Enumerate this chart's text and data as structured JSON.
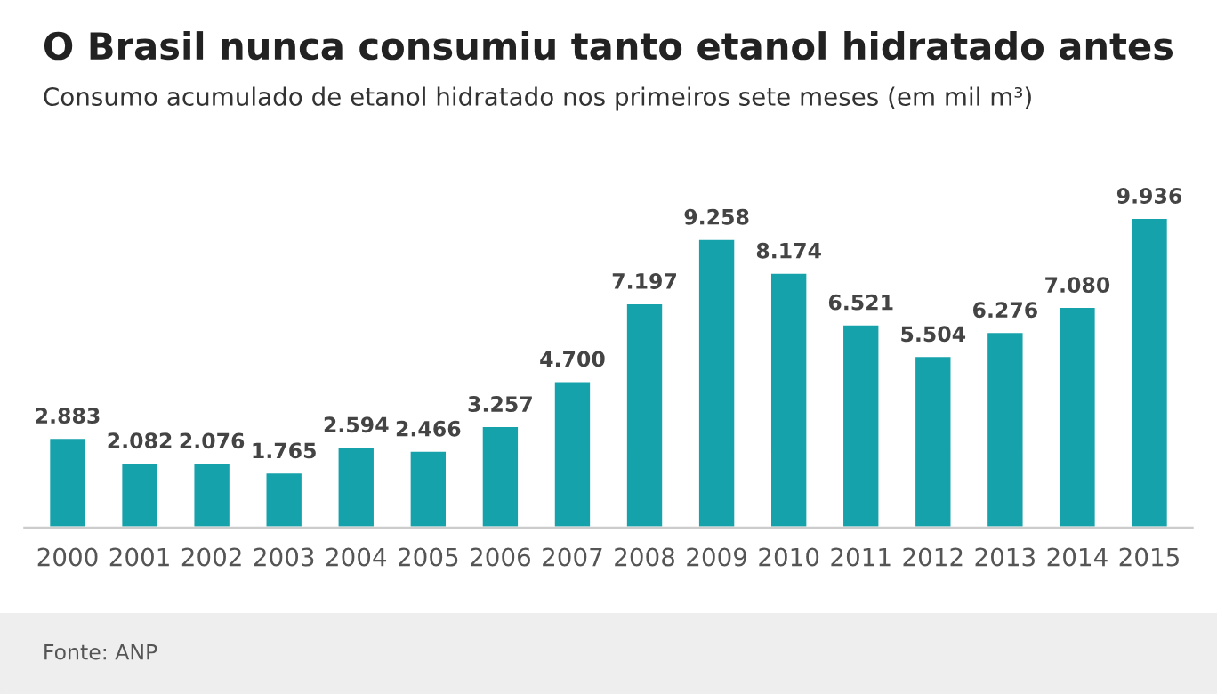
{
  "chart_data": {
    "type": "bar",
    "title": "O Brasil nunca consumiu tanto etanol hidratado antes",
    "subtitle": "Consumo acumulado de etanol hidratado nos primeiros sete meses (em mil m³)",
    "categories": [
      "2000",
      "2001",
      "2002",
      "2003",
      "2004",
      "2005",
      "2006",
      "2007",
      "2008",
      "2009",
      "2010",
      "2011",
      "2012",
      "2013",
      "2014",
      "2015"
    ],
    "values": [
      2883,
      2082,
      2076,
      1765,
      2594,
      2466,
      3257,
      4700,
      7197,
      9258,
      8174,
      6521,
      5504,
      6276,
      7080,
      9936
    ],
    "value_labels": [
      "2.883",
      "2.082",
      "2.076",
      "1.765",
      "2.594",
      "2.466",
      "3.257",
      "4.700",
      "7.197",
      "9.258",
      "8.174",
      "6.521",
      "5.504",
      "6.276",
      "7.080",
      "9.936"
    ],
    "color": "#16a2ab",
    "grid": false,
    "legend": false,
    "annotations": [
      "Fonte: ANP"
    ]
  }
}
